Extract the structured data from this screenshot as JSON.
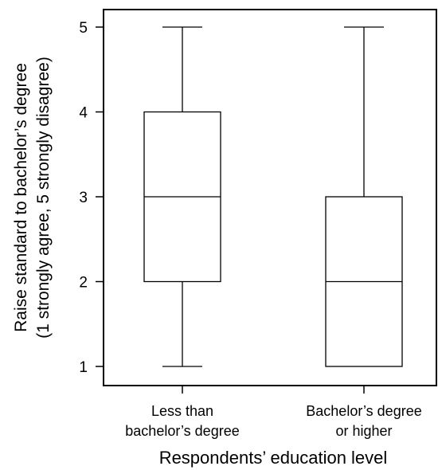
{
  "chart_data": {
    "type": "box",
    "xlabel": "Respondents’ education level",
    "ylabel_lines": [
      "Raise standard to bachelor’s degree",
      "(1 strongly agree, 5 strongly disagree)"
    ],
    "ylim": [
      1,
      5
    ],
    "yticks": [
      "1",
      "2",
      "3",
      "4",
      "5"
    ],
    "grid": false,
    "legend": "none",
    "categories": [
      {
        "label_lines": [
          "Less than",
          "bachelor’s degree"
        ]
      },
      {
        "label_lines": [
          "Bachelor’s degree",
          "or higher"
        ]
      }
    ],
    "boxes": [
      {
        "min": 1,
        "q1": 2,
        "median": 3,
        "q3": 4,
        "max": 5
      },
      {
        "min": 1,
        "q1": 1,
        "median": 2,
        "q3": 3,
        "max": 5
      }
    ],
    "colors": {
      "stroke": "#000000",
      "fill": "#ffffff"
    }
  }
}
